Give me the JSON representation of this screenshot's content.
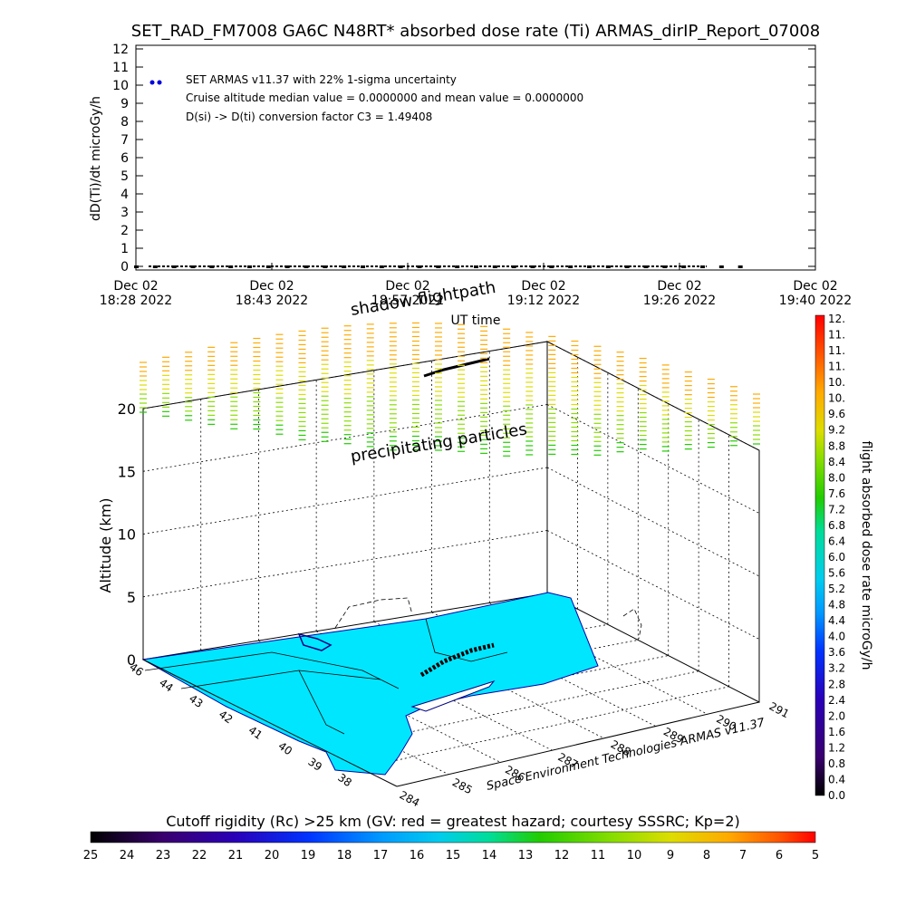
{
  "title": "SET_RAD_FM7008  GA6C N48RT* absorbed dose rate (Ti) ARMAS_dirIP_Report_07008",
  "top_chart": {
    "ylabel": "dD(Ti)/dt microGy/h",
    "xlabel": "UT time",
    "legend_lines": [
      "SET ARMAS v11.37 with 22% 1-sigma uncertainty",
      "Cruise altitude median value = 0.0000000 and mean value = 0.0000000",
      "D(si) -> D(ti) conversion factor C3 = 1.49408"
    ],
    "y_ticks": [
      "0",
      "1",
      "2",
      "3",
      "4",
      "5",
      "6",
      "7",
      "8",
      "9",
      "10",
      "11",
      "12"
    ],
    "x_ticks": [
      {
        "l1": "Dec 02",
        "l2": "18:28 2022"
      },
      {
        "l1": "Dec 02",
        "l2": "18:43 2022"
      },
      {
        "l1": "Dec 02",
        "l2": "18:57 2022"
      },
      {
        "l1": "Dec 02",
        "l2": "19:12 2022"
      },
      {
        "l1": "Dec 02",
        "l2": "19:26 2022"
      },
      {
        "l1": "Dec 02",
        "l2": "19:40 2022"
      }
    ]
  },
  "chart_data": [
    {
      "type": "scatter",
      "title": "SET_RAD_FM7008  GA6C N48RT* absorbed dose rate (Ti) ARMAS_dirIP_Report_07008",
      "xlabel": "UT time",
      "ylabel": "dD(Ti)/dt microGy/h",
      "x_ticks": [
        "Dec 02 18:28 2022",
        "Dec 02 18:43 2022",
        "Dec 02 18:57 2022",
        "Dec 02 19:12 2022",
        "Dec 02 19:26 2022",
        "Dec 02 19:40 2022"
      ],
      "ylim": [
        0,
        12
      ],
      "xlim": [
        "2022-12-02 18:28",
        "2022-12-02 19:40"
      ],
      "series": [
        {
          "name": "SET ARMAS v11.37 with 22% 1-sigma uncertainty",
          "color": "#0000dd",
          "x": [
            "18:28",
            "18:30",
            "18:32",
            "18:34",
            "18:36",
            "18:38",
            "18:40",
            "18:42",
            "18:44",
            "18:46",
            "18:48",
            "18:50",
            "18:52",
            "18:54",
            "18:56",
            "18:58",
            "19:00",
            "19:02",
            "19:04",
            "19:06",
            "19:08",
            "19:10",
            "19:12",
            "19:14",
            "19:16",
            "19:18",
            "19:20",
            "19:22",
            "19:24",
            "19:26",
            "19:28",
            "19:30",
            "19:32"
          ],
          "values": [
            0,
            0,
            0,
            0,
            0,
            0,
            0,
            0,
            0,
            0,
            0,
            0,
            0,
            0,
            0,
            0,
            0,
            0,
            0,
            0,
            0,
            0,
            0,
            0,
            0,
            0,
            0,
            0,
            0,
            0,
            0,
            0,
            0
          ]
        }
      ],
      "grid": false
    },
    {
      "type": "scatter",
      "subtype": "3d-map",
      "zlabel": "Altitude (km)",
      "z_ticks": [
        "0",
        "5",
        "10",
        "15",
        "20"
      ],
      "zlim": [
        0,
        22
      ],
      "lat_ticks": [
        "46",
        "44",
        "43",
        "42",
        "41",
        "40",
        "39",
        "38"
      ],
      "lon_ticks": [
        "284",
        "285",
        "286",
        "287",
        "288",
        "289",
        "290",
        "291"
      ],
      "annotations": [
        "shadow flightpath",
        "precipitating particles",
        "Space Environment Technologies ARMAS v11.37"
      ],
      "colorbar": {
        "label": "flight absorbed dose rate microGy/h",
        "ticks": [
          "0.0",
          "0.4",
          "0.8",
          "1.2",
          "1.6",
          "2.0",
          "2.4",
          "2.8",
          "3.2",
          "3.6",
          "4.0",
          "4.4",
          "4.8",
          "5.2",
          "5.6",
          "6.0",
          "6.4",
          "6.8",
          "7.2",
          "7.6",
          "8.0",
          "8.4",
          "8.8",
          "9.2",
          "9.6",
          "10.",
          "10.",
          "11.",
          "11.",
          "11.",
          "12."
        ]
      },
      "cutoff_bar": {
        "label": "Cutoff rigidity (Rc) >25 km (GV: red = greatest hazard; courtesy SSSRC; Kp=2)",
        "ticks": [
          "25",
          "24",
          "23",
          "22",
          "21",
          "20",
          "19",
          "18",
          "17",
          "16",
          "15",
          "14",
          "13",
          "12",
          "11",
          "10",
          "9",
          "8",
          "7",
          "6",
          "5"
        ]
      }
    }
  ],
  "colors": {
    "land": "#00e6ff",
    "point": "#0000dd",
    "colormap": [
      "#000000",
      "#3a006e",
      "#2a00b8",
      "#0033ff",
      "#0099ff",
      "#00ccee",
      "#00dd99",
      "#22cc00",
      "#88dd00",
      "#dddd00",
      "#ffaa00",
      "#ff5500",
      "#ff0000"
    ]
  }
}
